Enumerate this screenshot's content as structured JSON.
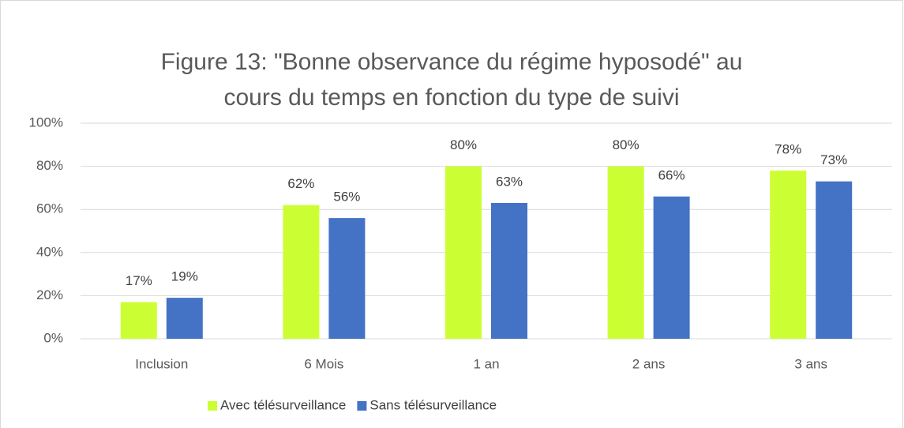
{
  "chart_data": {
    "type": "bar",
    "title": [
      "Figure 13: \"Bonne observance du régime hyposodé\" au",
      "cours du temps en fonction du type de suivi"
    ],
    "categories": [
      "Inclusion",
      "6 Mois",
      "1 an",
      "2 ans",
      "3 ans"
    ],
    "series": [
      {
        "name": "Avec télésurveillance",
        "color": "#ccff33",
        "values": [
          17,
          62,
          80,
          80,
          78
        ],
        "value_labels": [
          "17%",
          "62%",
          "80%",
          "80%",
          "78%"
        ]
      },
      {
        "name": "Sans télésurveillance",
        "color": "#4472c4",
        "values": [
          19,
          56,
          63,
          66,
          73
        ],
        "value_labels": [
          "19%",
          "56%",
          "63%",
          "66%",
          "73%"
        ]
      }
    ],
    "ylim": [
      0,
      100
    ],
    "yticks": [
      {
        "value": 0,
        "label": "0%"
      },
      {
        "value": 20,
        "label": "20%"
      },
      {
        "value": 40,
        "label": "40%"
      },
      {
        "value": 60,
        "label": "60%"
      },
      {
        "value": 80,
        "label": "80%"
      },
      {
        "value": 100,
        "label": "100%"
      }
    ],
    "grid": true,
    "legend": "bottom"
  }
}
